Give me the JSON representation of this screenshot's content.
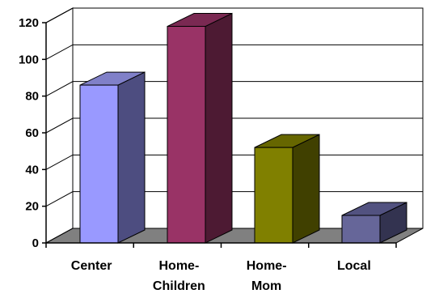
{
  "chart_data": {
    "type": "bar",
    "categories": [
      [
        "Center"
      ],
      [
        "Home-",
        "Children"
      ],
      [
        "Home-",
        "Mom"
      ],
      [
        "Local"
      ]
    ],
    "values": [
      86,
      118,
      52,
      15
    ],
    "ylim": [
      0,
      120
    ],
    "yticks": [
      0,
      20,
      40,
      60,
      80,
      100,
      120
    ],
    "grid": true,
    "style": "3d-column",
    "colors": {
      "front": [
        "#9999FF",
        "#993366",
        "#808000",
        "#666699"
      ],
      "side": [
        "#4D4D80",
        "#4D1A33",
        "#404000",
        "#333350"
      ],
      "top": [
        "#8080C8",
        "#7A2952",
        "#666600",
        "#525280"
      ],
      "floor": "#808080",
      "walls": "#FFFFFF",
      "grid": "#000000"
    }
  }
}
